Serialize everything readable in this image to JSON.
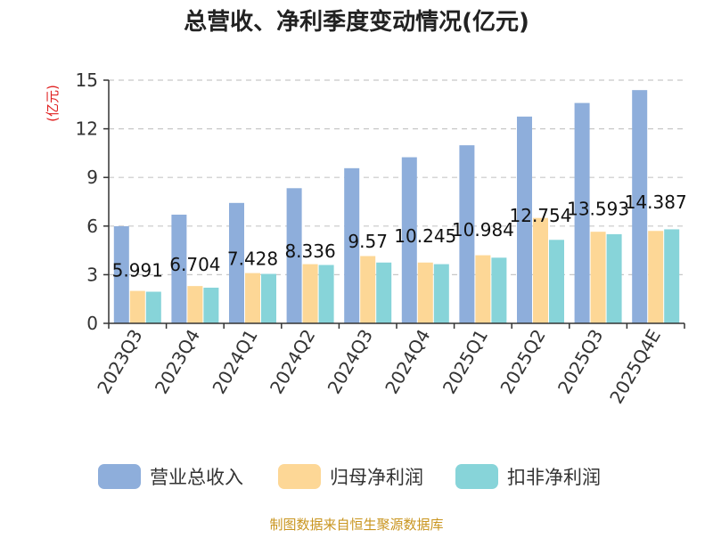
{
  "chart_data": {
    "type": "bar",
    "title": "总营收、净利季度变动情况(亿元)",
    "ylabel": "(亿元)",
    "ylim": [
      0,
      15
    ],
    "yticks": [
      0,
      3,
      6,
      9,
      12,
      15
    ],
    "grid": true,
    "legend_position": "bottom",
    "categories": [
      "2023Q3",
      "2023Q4",
      "2024Q1",
      "2024Q2",
      "2024Q3",
      "2024Q4",
      "2025Q1",
      "2025Q2",
      "2025Q3",
      "2025Q4E"
    ],
    "series": [
      {
        "name": "营业总收入",
        "color": "#8eaedb",
        "values": [
          5.991,
          6.704,
          7.428,
          8.336,
          9.57,
          10.245,
          10.984,
          12.754,
          13.593,
          14.387
        ]
      },
      {
        "name": "归母净利润",
        "color": "#fdd796",
        "values": [
          2.0,
          2.3,
          3.1,
          3.65,
          4.15,
          3.75,
          4.2,
          6.5,
          5.65,
          5.7
        ]
      },
      {
        "name": "扣非净利润",
        "color": "#87d4d9",
        "values": [
          1.95,
          2.2,
          3.05,
          3.6,
          3.75,
          3.65,
          4.05,
          5.15,
          5.5,
          5.8
        ]
      }
    ],
    "data_labels": [
      "5.991",
      "6.704",
      "7.428",
      "8.336",
      "9.57",
      "10.245",
      "10.984",
      "12.754",
      "13.593",
      "14.387"
    ]
  },
  "source": "制图数据来自恒生聚源数据库"
}
